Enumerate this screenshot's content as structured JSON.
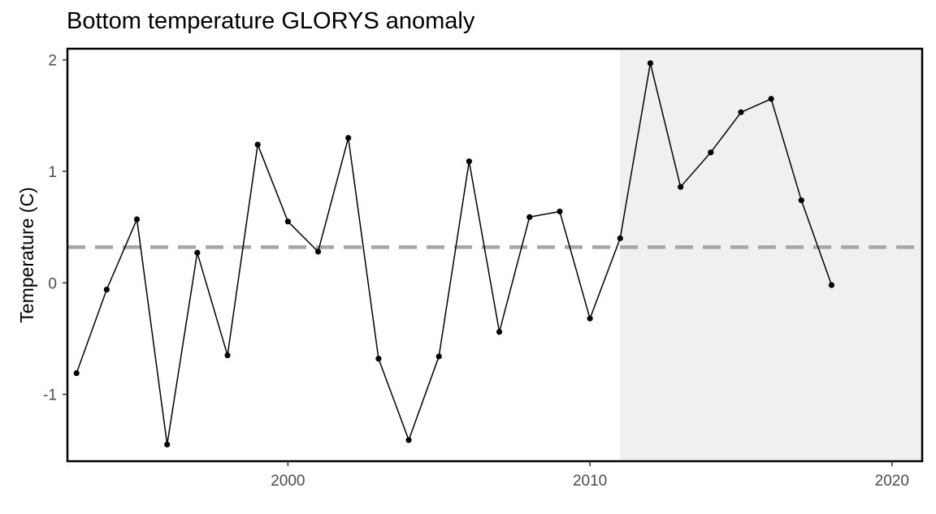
{
  "chart_data": {
    "type": "line",
    "title": "Bottom temperature GLORYS anomaly",
    "xlabel": "",
    "ylabel": "Temperature (C)",
    "xlim": [
      1992.7,
      2021.0
    ],
    "ylim": [
      -1.6,
      2.1
    ],
    "xticks": [
      2000,
      2010,
      2020
    ],
    "yticks": [
      -1,
      0,
      1,
      2
    ],
    "grid": false,
    "legend": "none",
    "series": [
      {
        "x": [
          1993,
          1994,
          1995,
          1996,
          1997,
          1998,
          1999,
          2000,
          2001,
          2002,
          2003,
          2004,
          2005,
          2006,
          2007,
          2008,
          2009,
          2010,
          2011,
          2012,
          2013,
          2014,
          2015,
          2016,
          2017,
          2018
        ],
        "y": [
          -0.81,
          -0.06,
          0.57,
          -1.45,
          0.27,
          -0.65,
          1.24,
          0.55,
          0.28,
          1.3,
          -0.68,
          -1.41,
          -0.66,
          1.09,
          -0.44,
          0.59,
          0.64,
          -0.32,
          0.4,
          1.97,
          0.86,
          1.17,
          1.53,
          1.65,
          0.74,
          -0.02
        ]
      }
    ],
    "reference_line": {
      "y": 0.32,
      "style": "dashed",
      "color": "#a6a6a6"
    },
    "highlight_region": {
      "x_start": 2011,
      "x_end": 2021,
      "color": "#f0f0f0"
    },
    "colors": {
      "line": "#000000",
      "point": "#000000",
      "axis": "#000000"
    }
  }
}
